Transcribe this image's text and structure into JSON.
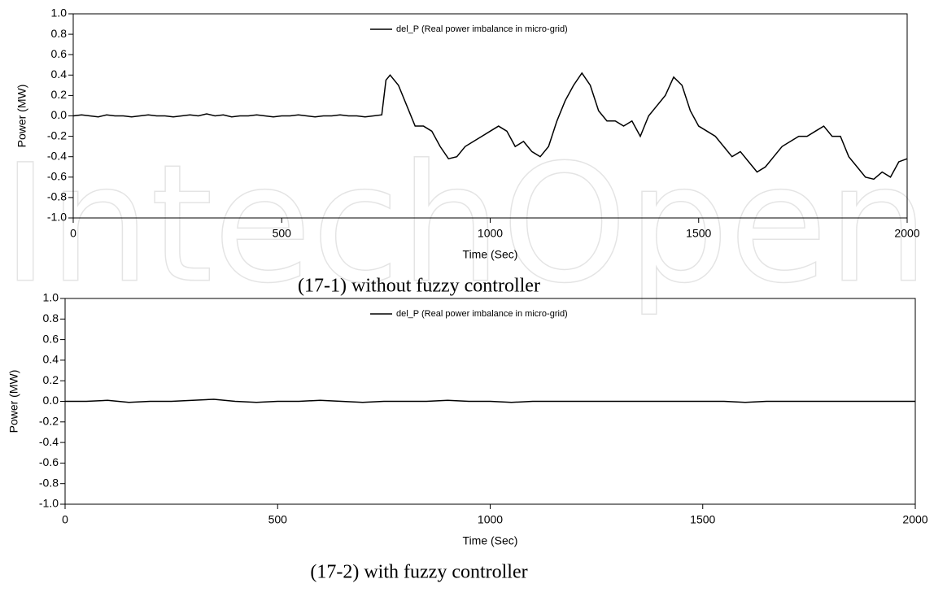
{
  "watermark": "IntechOpen",
  "chart_data": [
    {
      "type": "line",
      "caption": "(17-1) without fuzzy controller",
      "xlabel": "Time (Sec)",
      "ylabel": "Power (MW)",
      "xlim": [
        0,
        2000
      ],
      "xticks": [
        0,
        500,
        1000,
        1500,
        2000
      ],
      "ylim": [
        -1.0,
        1.0
      ],
      "yticks": [
        {
          "value": -1.0,
          "label": "-1.0"
        },
        -0.8,
        -0.6,
        -0.4,
        -0.2,
        {
          "value": 0.0,
          "label": "0.0"
        },
        0.2,
        0.4,
        0.6,
        0.8,
        {
          "value": 1.0,
          "label": "1.0"
        }
      ],
      "x": [
        0,
        20,
        40,
        60,
        80,
        100,
        120,
        140,
        160,
        180,
        200,
        220,
        240,
        260,
        280,
        300,
        320,
        340,
        360,
        380,
        400,
        420,
        440,
        460,
        480,
        500,
        520,
        540,
        560,
        580,
        600,
        620,
        640,
        660,
        680,
        700,
        720,
        740,
        750,
        760,
        780,
        800,
        820,
        840,
        860,
        880,
        900,
        920,
        940,
        960,
        980,
        1000,
        1020,
        1040,
        1060,
        1080,
        1100,
        1120,
        1140,
        1160,
        1180,
        1200,
        1220,
        1240,
        1260,
        1280,
        1300,
        1320,
        1340,
        1360,
        1380,
        1400,
        1420,
        1440,
        1460,
        1480,
        1500,
        1520,
        1540,
        1560,
        1580,
        1600,
        1620,
        1640,
        1660,
        1680,
        1700,
        1720,
        1740,
        1760,
        1780,
        1800,
        1820,
        1840,
        1860,
        1880,
        1900,
        1920,
        1940,
        1960,
        1980,
        2000
      ],
      "series": [
        {
          "name": "del_P (Real power imbalance in micro-grid)",
          "color": "#000000",
          "values": [
            0.0,
            0.01,
            0.0,
            -0.01,
            0.01,
            0.0,
            0.0,
            -0.01,
            0.0,
            0.01,
            0.0,
            0.0,
            -0.01,
            0.0,
            0.01,
            0.0,
            0.02,
            0.0,
            0.01,
            -0.01,
            0.0,
            0.0,
            0.01,
            0.0,
            -0.01,
            0.0,
            0.0,
            0.01,
            0.0,
            -0.01,
            0.0,
            0.0,
            0.01,
            0.0,
            0.0,
            -0.01,
            0.0,
            0.01,
            0.35,
            0.4,
            0.3,
            0.1,
            -0.1,
            -0.1,
            -0.15,
            -0.3,
            -0.42,
            -0.4,
            -0.3,
            -0.25,
            -0.2,
            -0.15,
            -0.1,
            -0.15,
            -0.3,
            -0.25,
            -0.35,
            -0.4,
            -0.3,
            -0.05,
            0.15,
            0.3,
            0.42,
            0.3,
            0.05,
            -0.05,
            -0.05,
            -0.1,
            -0.05,
            -0.2,
            0.0,
            0.1,
            0.2,
            0.38,
            0.3,
            0.05,
            -0.1,
            -0.15,
            -0.2,
            -0.3,
            -0.4,
            -0.35,
            -0.45,
            -0.55,
            -0.5,
            -0.4,
            -0.3,
            -0.25,
            -0.2,
            -0.2,
            -0.15,
            -0.1,
            -0.2,
            -0.2,
            -0.4,
            -0.5,
            -0.6,
            -0.62,
            -0.55,
            -0.6,
            -0.45,
            -0.42
          ]
        }
      ]
    },
    {
      "type": "line",
      "caption": "(17-2) with fuzzy controller",
      "xlabel": "Time (Sec)",
      "ylabel": "Power (MW)",
      "xlim": [
        0,
        2000
      ],
      "xticks": [
        0,
        500,
        1000,
        1500,
        2000
      ],
      "ylim": [
        -1.0,
        1.0
      ],
      "yticks": [
        {
          "value": -1.0,
          "label": "-1.0"
        },
        -0.8,
        -0.6,
        -0.4,
        -0.2,
        {
          "value": 0.0,
          "label": "0.0"
        },
        0.2,
        0.4,
        0.6,
        0.8,
        {
          "value": 1.0,
          "label": "1.0"
        }
      ],
      "x": [
        0,
        50,
        100,
        150,
        200,
        250,
        300,
        350,
        400,
        450,
        500,
        550,
        600,
        650,
        700,
        750,
        800,
        850,
        900,
        950,
        1000,
        1050,
        1100,
        1150,
        1200,
        1250,
        1300,
        1350,
        1400,
        1450,
        1500,
        1550,
        1600,
        1650,
        1700,
        1750,
        1800,
        1850,
        1900,
        1950,
        2000
      ],
      "series": [
        {
          "name": "del_P (Real power imbalance in micro-grid)",
          "color": "#000000",
          "values": [
            0.0,
            0.0,
            0.01,
            -0.01,
            0.0,
            0.0,
            0.01,
            0.02,
            0.0,
            -0.01,
            0.0,
            0.0,
            0.01,
            0.0,
            -0.01,
            0.0,
            0.0,
            0.0,
            0.01,
            0.0,
            0.0,
            -0.01,
            0.0,
            0.0,
            0.0,
            0.0,
            0.0,
            0.0,
            0.0,
            0.0,
            0.0,
            0.0,
            -0.01,
            0.0,
            0.0,
            0.0,
            0.0,
            0.0,
            0.0,
            0.0,
            0.0
          ]
        }
      ]
    }
  ]
}
